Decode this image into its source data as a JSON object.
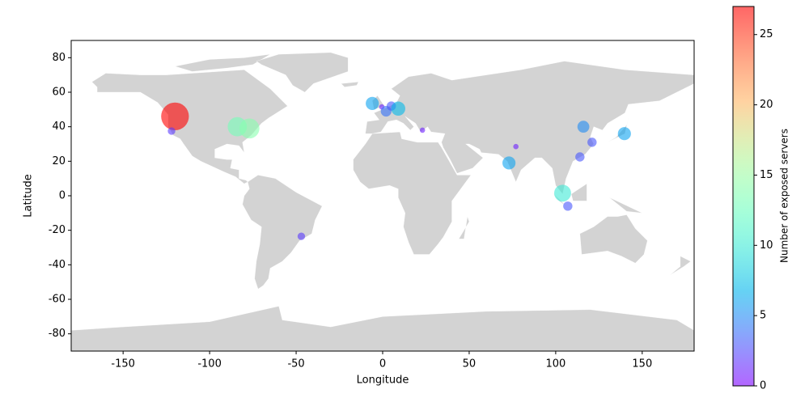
{
  "chart_data": {
    "type": "scatter",
    "x_label": "Longitude",
    "y_label": "Latitude",
    "x": [
      -120,
      -122,
      -84,
      -77,
      -47,
      -6,
      -0.5,
      2,
      5,
      9,
      23,
      73,
      77,
      104,
      107,
      114,
      116,
      121,
      139.7
    ],
    "y": [
      46,
      37.5,
      40,
      39,
      -23.5,
      53.5,
      51.5,
      49,
      52,
      50.5,
      38,
      19,
      28.5,
      1.5,
      -6,
      22.5,
      40,
      31,
      36
    ],
    "values": [
      27,
      2,
      13,
      14,
      2,
      6,
      1,
      4,
      3,
      7,
      1,
      6,
      1,
      10,
      3,
      3,
      5,
      3,
      6
    ],
    "colormap": "rainbow",
    "alpha": 0.6,
    "colorbar_label": "Number of exposed servers",
    "clim": [
      0,
      27
    ],
    "cticks": [
      0,
      5,
      10,
      15,
      20,
      25
    ],
    "xlim": [
      -180,
      180
    ],
    "xticks": [
      -150,
      -100,
      -50,
      0,
      50,
      100,
      150
    ],
    "ylim": [
      -90,
      90
    ],
    "yticks": [
      -80,
      -60,
      -40,
      -20,
      0,
      20,
      40,
      60,
      80
    ]
  }
}
